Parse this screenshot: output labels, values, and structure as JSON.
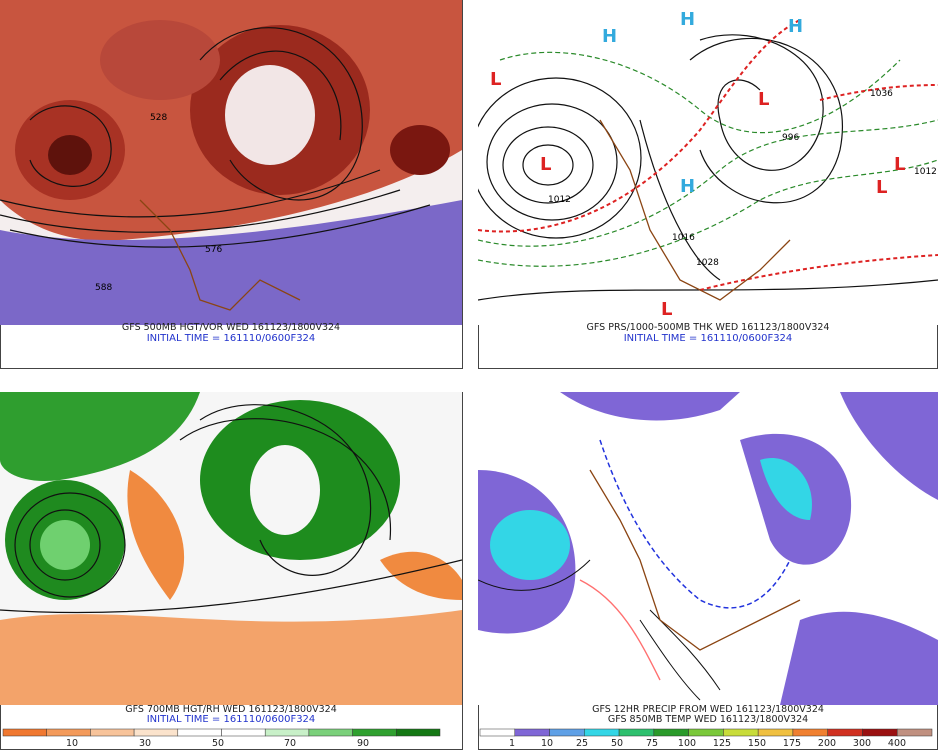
{
  "panels": [
    {
      "caption": "GFS 500MB HGT/VOR WED 161123/1800V324",
      "initial": "INITIAL TIME = 161110/0600F324",
      "labels": [
        "576",
        "588",
        "528"
      ]
    },
    {
      "caption": "GFS PRS/1000-500MB THK WED 161123/1800V324",
      "initial": "INITIAL TIME = 161110/0600F324",
      "labels": [
        "L",
        "L",
        "L",
        "L",
        "L",
        "L",
        "H",
        "H",
        "H",
        "H",
        "996",
        "1012",
        "1036",
        "1028",
        "1016",
        "1012"
      ]
    },
    {
      "caption": "GFS 700MB HGT/RH WED 161123/1800V324",
      "initial": "INITIAL TIME = 161110/0600F324",
      "colorbar": [
        "10",
        "30",
        "50",
        "70",
        "90"
      ]
    },
    {
      "caption": "GFS 12HR PRECIP FROM WED 161123/1800V324",
      "initial": "GFS 850MB TEMP WED 161123/1800V324",
      "colorbar": [
        "1",
        "10",
        "25",
        "50",
        "75",
        "100",
        "125",
        "150",
        "175",
        "200",
        "300",
        "400"
      ]
    }
  ]
}
